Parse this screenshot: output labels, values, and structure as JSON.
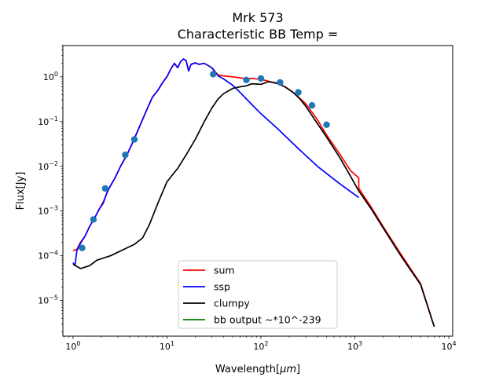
{
  "chart_data": {
    "type": "line",
    "title": "Mrk 573",
    "subtitle": "Characteristic BB Temp =",
    "xlabel": "Wavelength[",
    "xlabel_unit": "μm",
    "xlabel_close": "]",
    "ylabel": "Flux[Jy]",
    "xscale": "log",
    "yscale": "log",
    "xlim": [
      0.78,
      11000
    ],
    "ylim": [
      1.6e-06,
      5
    ],
    "x_ticks": [
      {
        "value": 1,
        "base": "10",
        "exp": "0"
      },
      {
        "value": 10,
        "base": "10",
        "exp": "1"
      },
      {
        "value": 100,
        "base": "10",
        "exp": "2"
      },
      {
        "value": 1000,
        "base": "10",
        "exp": "3"
      },
      {
        "value": 10000,
        "base": "10",
        "exp": "4"
      }
    ],
    "y_ticks": [
      {
        "value": 1e-05,
        "base": "10",
        "exp": "−5"
      },
      {
        "value": 0.0001,
        "base": "10",
        "exp": "−4"
      },
      {
        "value": 0.001,
        "base": "10",
        "exp": "−3"
      },
      {
        "value": 0.01,
        "base": "10",
        "exp": "−2"
      },
      {
        "value": 0.1,
        "base": "10",
        "exp": "−1"
      },
      {
        "value": 1,
        "base": "10",
        "exp": "0"
      }
    ],
    "grid": false,
    "legend_position": "lower center",
    "series": [
      {
        "name": "sum",
        "color": "#ff0000",
        "x": [
          1.0,
          1.1,
          1.2,
          1.35,
          1.5,
          1.7,
          1.9,
          2.1,
          2.4,
          2.8,
          3.2,
          3.7,
          4.2,
          5.0,
          6.0,
          7.0,
          8.0,
          9.0,
          10,
          11,
          12,
          13,
          14,
          15,
          16,
          17,
          18,
          20,
          22,
          25,
          30,
          35,
          40,
          50,
          60,
          70,
          80,
          100,
          120,
          150,
          180,
          220,
          260,
          300,
          400,
          500,
          700,
          900,
          1100,
          1100,
          1500,
          2000,
          3000,
          4000,
          5000,
          7000
        ],
        "y": [
          0.00013,
          0.00014,
          0.0002,
          0.00028,
          0.00045,
          0.0007,
          0.0011,
          0.0016,
          0.0031,
          0.0055,
          0.01,
          0.017,
          0.03,
          0.07,
          0.17,
          0.35,
          0.5,
          0.75,
          1.0,
          1.5,
          2.0,
          1.6,
          2.2,
          2.5,
          2.3,
          1.35,
          1.9,
          2.05,
          1.9,
          2.0,
          1.6,
          1.1,
          1.05,
          1.0,
          0.95,
          0.9,
          0.92,
          0.88,
          0.8,
          0.7,
          0.6,
          0.45,
          0.33,
          0.25,
          0.11,
          0.05,
          0.018,
          0.008,
          0.0055,
          0.0032,
          0.0012,
          0.00045,
          0.00012,
          4.8e-05,
          2.4e-05,
          2.6e-06
        ]
      },
      {
        "name": "ssp",
        "color": "#0000ff",
        "x": [
          1.0,
          1.05,
          1.1,
          1.2,
          1.35,
          1.5,
          1.7,
          1.9,
          2.1,
          2.3,
          2.4,
          2.6,
          2.8,
          3.2,
          3.7,
          4.2,
          5.0,
          6.0,
          7.0,
          8.0,
          9.0,
          10,
          11,
          12,
          13,
          14,
          15,
          16,
          17,
          18,
          20,
          22,
          25,
          30,
          35,
          40,
          50,
          60,
          70,
          80,
          100,
          150,
          250,
          400,
          700,
          1100
        ],
        "y": [
          7e-05,
          6e-05,
          0.00013,
          0.00019,
          0.00028,
          0.00045,
          0.0007,
          0.0011,
          0.0015,
          0.0026,
          0.0031,
          0.0042,
          0.0055,
          0.01,
          0.017,
          0.03,
          0.07,
          0.17,
          0.35,
          0.5,
          0.75,
          1.0,
          1.5,
          2.0,
          1.6,
          2.2,
          2.5,
          2.3,
          1.35,
          1.9,
          2.05,
          1.9,
          2.0,
          1.6,
          1.05,
          0.9,
          0.65,
          0.45,
          0.32,
          0.24,
          0.15,
          0.07,
          0.025,
          0.01,
          0.004,
          0.002
        ]
      },
      {
        "name": "clumpy",
        "color": "#000000",
        "x": [
          1.0,
          1.2,
          1.5,
          1.8,
          2.5,
          3.5,
          4.5,
          5.5,
          6.5,
          8.0,
          10,
          13,
          16,
          20,
          25,
          30,
          35,
          40,
          50,
          60,
          70,
          80,
          100,
          120,
          150,
          180,
          220,
          260,
          300,
          400,
          500,
          700,
          900,
          1100,
          1500,
          2000,
          3000,
          4000,
          5000,
          7000
        ],
        "y": [
          6.5e-05,
          5.2e-05,
          6e-05,
          8e-05,
          0.0001,
          0.00014,
          0.00018,
          0.00025,
          0.0005,
          0.0015,
          0.0045,
          0.009,
          0.018,
          0.04,
          0.1,
          0.2,
          0.32,
          0.42,
          0.55,
          0.6,
          0.63,
          0.7,
          0.68,
          0.78,
          0.72,
          0.6,
          0.45,
          0.32,
          0.22,
          0.09,
          0.045,
          0.015,
          0.006,
          0.0028,
          0.0011,
          0.00042,
          0.00011,
          4.5e-05,
          2.3e-05,
          2.6e-06
        ]
      },
      {
        "name": "bb output ~*10^-239",
        "color": "#008000",
        "x": [],
        "y": []
      }
    ],
    "observations": {
      "color": "#1f77b4",
      "x": [
        1.25,
        1.65,
        2.2,
        3.6,
        4.5,
        31,
        70,
        100,
        160,
        250,
        350,
        500
      ],
      "y": [
        0.00015,
        0.00065,
        0.0032,
        0.018,
        0.04,
        1.15,
        0.85,
        0.92,
        0.75,
        0.45,
        0.23,
        0.085
      ]
    }
  }
}
